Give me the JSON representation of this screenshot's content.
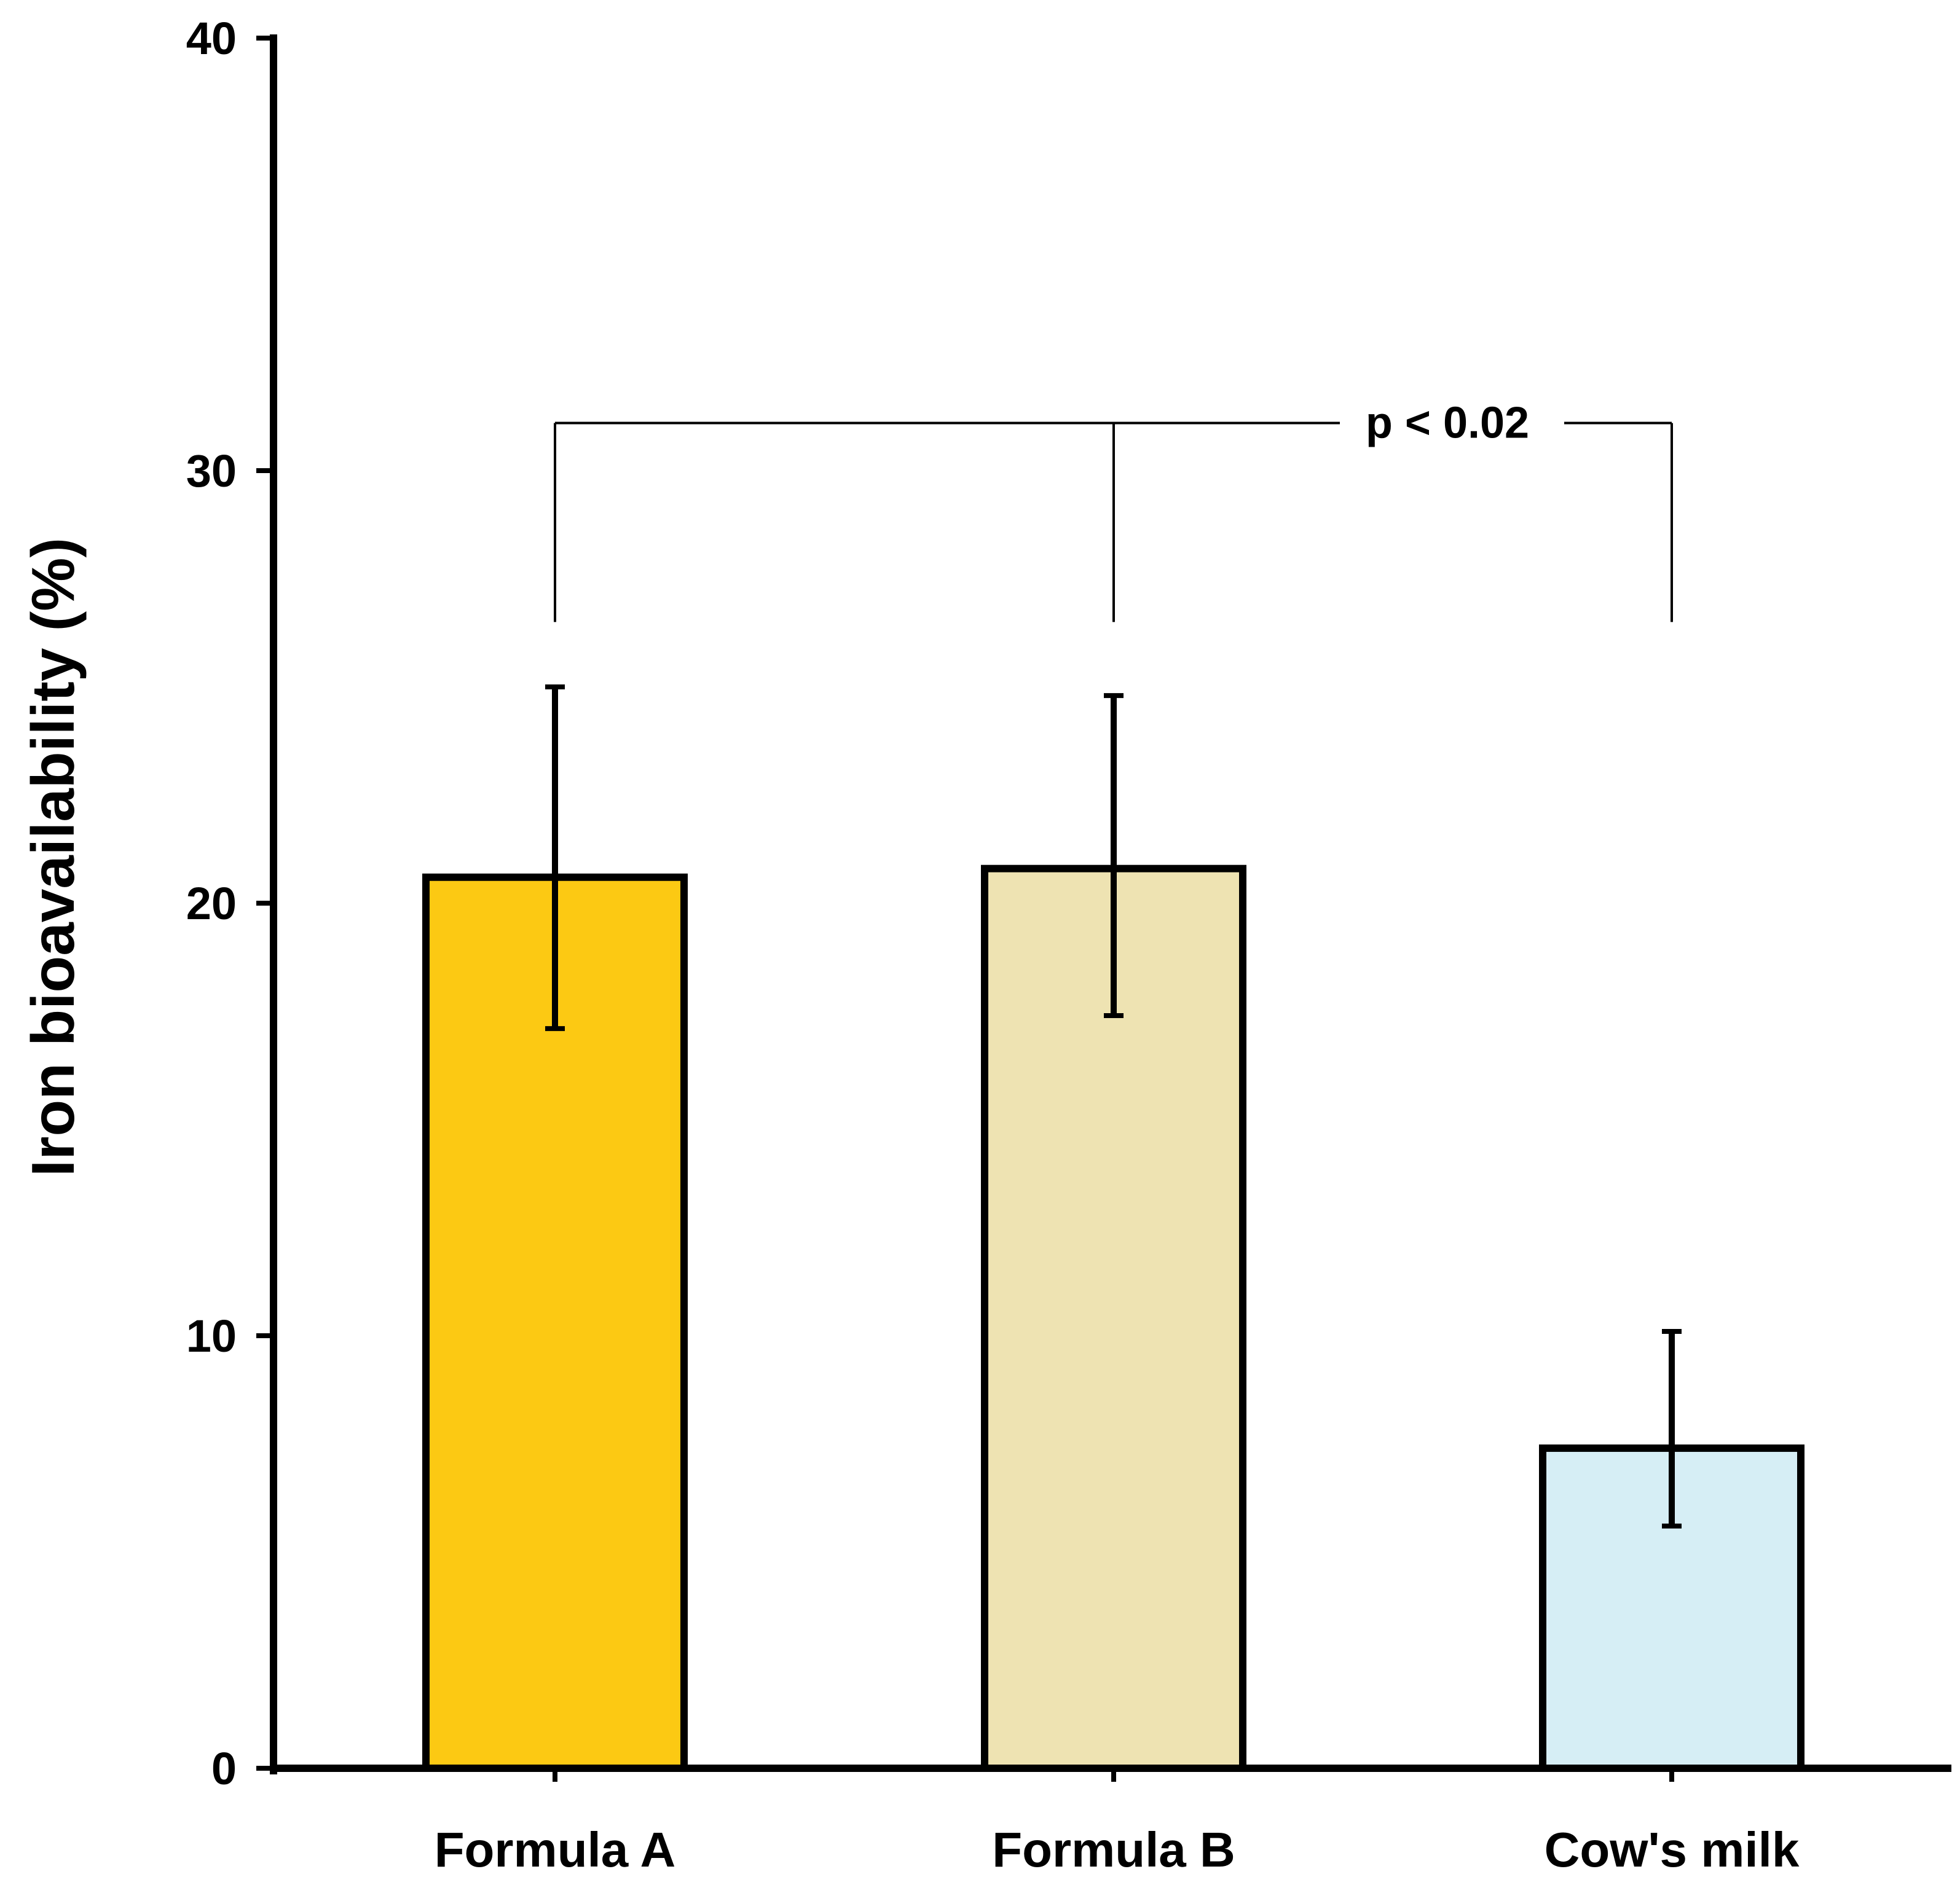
{
  "chart_data": {
    "type": "bar",
    "title": "",
    "xlabel": "",
    "ylabel": "Iron bioavailability (%)",
    "ylim": [
      0,
      40
    ],
    "yticks": [
      0,
      10,
      20,
      30,
      40
    ],
    "grid": false,
    "legend": "none",
    "categories": [
      "Formula A",
      "Formula B",
      "Cow's milk"
    ],
    "values": [
      20.6,
      20.8,
      7.4
    ],
    "error_upper": [
      25.0,
      24.8,
      10.1
    ],
    "error_lower": [
      17.1,
      17.4,
      5.6
    ],
    "colors": [
      "#FCC913",
      "#EEE3B2",
      "#D6EEF5"
    ],
    "annotations": [
      {
        "text": "p < 0.02",
        "type": "significance-bracket",
        "groups": [
          "Formula A",
          "Formula B",
          "Cow's milk"
        ],
        "level": 31.1,
        "drop_to": 26.5
      }
    ]
  }
}
